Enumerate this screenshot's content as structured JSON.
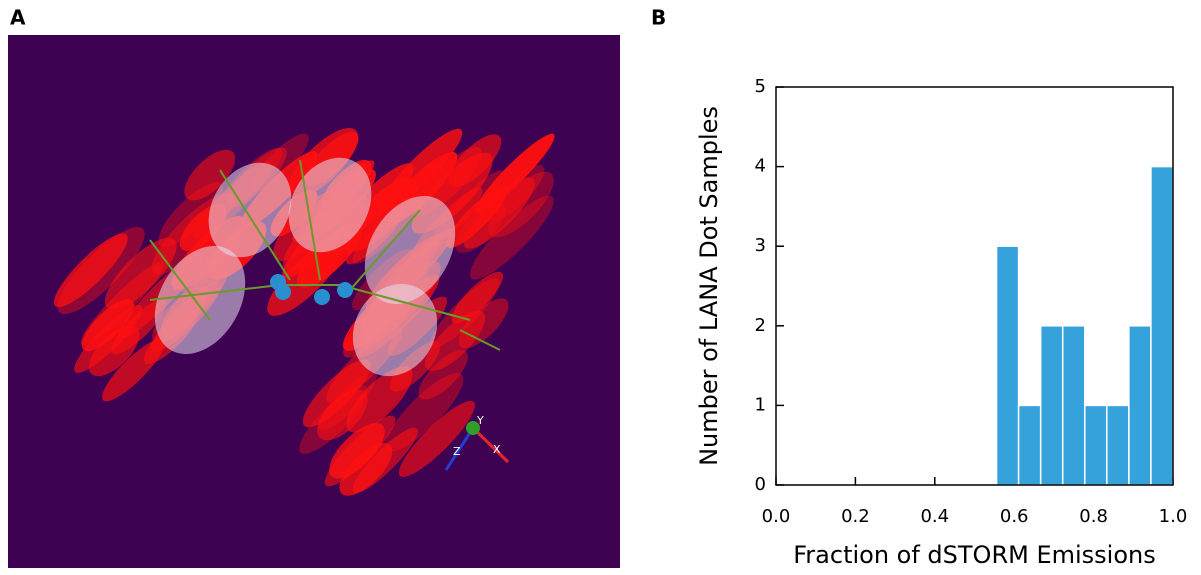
{
  "panels": {
    "a": {
      "label": "A",
      "axis_labels": [
        "Y",
        "X",
        "Z"
      ]
    },
    "b": {
      "label": "B"
    }
  },
  "chart_data": {
    "type": "histogram",
    "xlabel": "Fraction of dSTORM Emissions",
    "ylabel": "Number of LANA Dot Samples",
    "bins": [
      0.5556,
      0.6111,
      0.6667,
      0.7222,
      0.7778,
      0.8333,
      0.8889,
      0.9444,
      1.0
    ],
    "values": [
      3,
      1,
      2,
      2,
      1,
      1,
      2,
      4
    ],
    "color": "#35a2db",
    "xlim": [
      0,
      1
    ],
    "xticks": [
      {
        "value": 0,
        "label": "0.0"
      },
      0.2,
      0.4,
      0.6,
      0.8,
      {
        "value": 1,
        "label": "1.0"
      }
    ],
    "ylim": [
      0,
      5
    ],
    "yticks": [
      0,
      1,
      2,
      3,
      4,
      5
    ]
  }
}
